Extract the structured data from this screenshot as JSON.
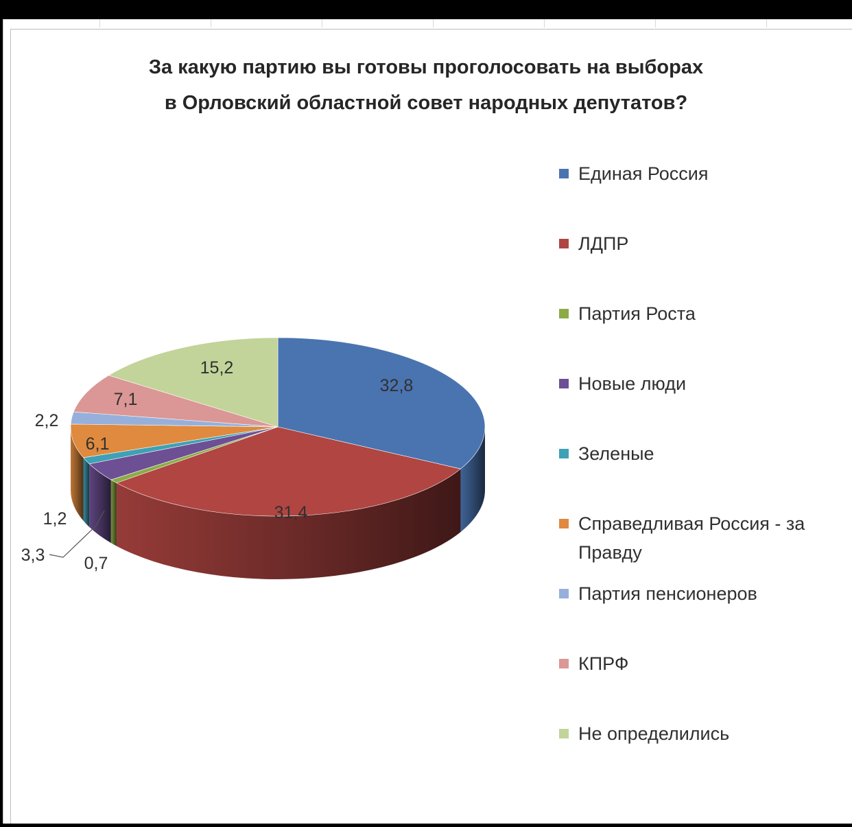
{
  "chart_data": {
    "type": "pie",
    "title_lines": [
      "За какую партию вы готовы проголосовать на выборах",
      "в Орловский областной совет народных депутатов?"
    ],
    "slices": [
      {
        "name": "Единая Россия",
        "value": 32.8,
        "label": "32,8",
        "color": "#4a74b0"
      },
      {
        "name": "ЛДПР",
        "value": 31.4,
        "label": "31,4",
        "color": "#b04542"
      },
      {
        "name": "Партия Роста",
        "value": 0.7,
        "label": "0,7",
        "color": "#8cab46"
      },
      {
        "name": "Новые люди",
        "value": 3.3,
        "label": "3,3",
        "color": "#6d4f94"
      },
      {
        "name": "Зеленые",
        "value": 1.2,
        "label": "1,2",
        "color": "#3ea1b5"
      },
      {
        "name": "Справедливая Россия - за Правду",
        "value": 6.1,
        "label": "6,1",
        "color": "#df8a3e"
      },
      {
        "name": "Партия пенсионеров",
        "value": 2.2,
        "label": "2,2",
        "color": "#97b0db"
      },
      {
        "name": "КПРФ",
        "value": 7.1,
        "label": "7,1",
        "color": "#db9795"
      },
      {
        "name": "Не определились",
        "value": 15.2,
        "label": "15,2",
        "color": "#c2d49a"
      }
    ],
    "legend_position": "right",
    "style": "3d-pie"
  }
}
